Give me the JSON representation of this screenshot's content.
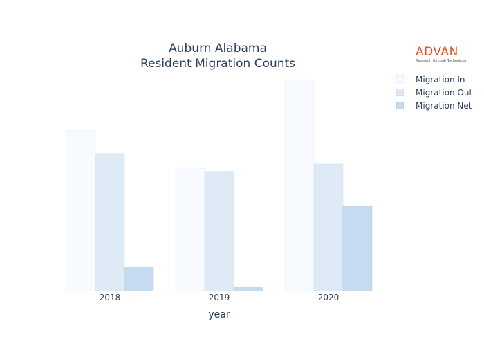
{
  "title": {
    "line1": "Auburn Alabama",
    "line2": "Resident Migration Counts"
  },
  "logo": {
    "word": "ADVAN",
    "tagline": "Research through Technology"
  },
  "colors": {
    "migration_in": "#f7fbff",
    "migration_out": "#deebf7",
    "migration_net": "#c6dbef",
    "text": "#2a3f5f",
    "logo": "#e0531f"
  },
  "chart_data": {
    "type": "bar",
    "title": "Auburn Alabama\nResident Migration Counts",
    "xlabel": "year",
    "ylabel": "",
    "categories": [
      "2018",
      "2019",
      "2020"
    ],
    "ylim": [
      0,
      1000
    ],
    "grid": false,
    "legend_position": "top-right",
    "series": [
      {
        "name": "Migration In",
        "values": [
          760,
          580,
          1000
        ]
      },
      {
        "name": "Migration Out",
        "values": [
          650,
          565,
          600
        ]
      },
      {
        "name": "Migration Net",
        "values": [
          110,
          15,
          400
        ]
      }
    ]
  }
}
